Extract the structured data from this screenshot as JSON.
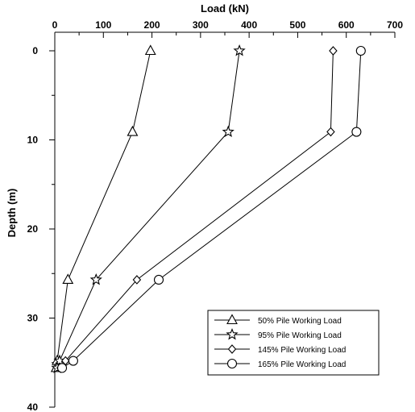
{
  "chart_data": {
    "type": "line",
    "xlabel": "Load (kN)",
    "ylabel": "Depth (m)",
    "xlim": [
      0,
      700
    ],
    "ylim": [
      0,
      40
    ],
    "y_inverted": true,
    "x_axis_position": "top",
    "x_ticks": [
      "0",
      "100",
      "200",
      "300",
      "400",
      "500",
      "600",
      "700"
    ],
    "y_ticks": [
      "0",
      "10",
      "20",
      "30",
      "40"
    ],
    "grid": false,
    "legend_position": "bottom-right",
    "series": [
      {
        "name": "50% Pile Working Load",
        "marker": "triangle",
        "points": [
          [
            197,
            0
          ],
          [
            160,
            9.1
          ],
          [
            27,
            25.7
          ],
          [
            5,
            34.8
          ],
          [
            3,
            35.6
          ]
        ]
      },
      {
        "name": "95% Pile Working Load",
        "marker": "star",
        "points": [
          [
            380,
            0
          ],
          [
            357,
            9.1
          ],
          [
            85,
            25.7
          ],
          [
            10,
            34.8
          ],
          [
            5,
            35.6
          ]
        ]
      },
      {
        "name": "145% Pile Working Load",
        "marker": "diamond",
        "points": [
          [
            573,
            0
          ],
          [
            568,
            9.1
          ],
          [
            169,
            25.7
          ],
          [
            22,
            34.8
          ],
          [
            12,
            35.6
          ]
        ]
      },
      {
        "name": "165% Pile Working Load",
        "marker": "circle",
        "points": [
          [
            630,
            0
          ],
          [
            621,
            9.1
          ],
          [
            214,
            25.7
          ],
          [
            38,
            34.8
          ],
          [
            15,
            35.6
          ]
        ]
      }
    ]
  }
}
